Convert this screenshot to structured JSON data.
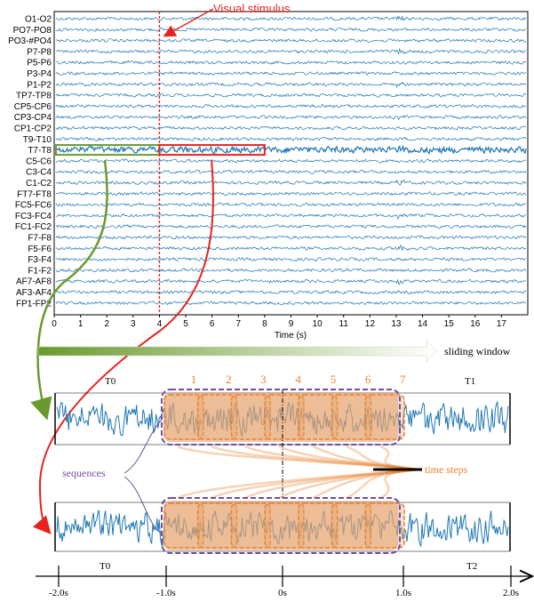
{
  "eeg": {
    "channels": [
      "O1-O2",
      "PO7-PO8",
      "PO3-#PO4",
      "P7-P8",
      "P5-P6",
      "P3-P4",
      "P1-P2",
      "TP7-TP8",
      "CP5-CP6",
      "CP3-CP4",
      "CP1-CP2",
      "T9-T10",
      "T7-T8",
      "C5-C6",
      "C3-C4",
      "C1-C2",
      "FT7-FT8",
      "FC5-FC6",
      "FC3-FC4",
      "FC1-FC2",
      "F7-F8",
      "F5-F6",
      "F3-F4",
      "F1-F2",
      "AF7-AF8",
      "AF3-AF4",
      "FP1-FP2"
    ],
    "x_ticks": [
      "0",
      "1",
      "2",
      "3",
      "4",
      "5",
      "6",
      "7",
      "8",
      "9",
      "10",
      "11",
      "12",
      "13",
      "14",
      "15",
      "16",
      "17"
    ],
    "x_label": "Time (s)",
    "stimulus_label": "Visual stimulus",
    "stimulus_time": 4,
    "highlight_channel": "T7-T8",
    "highlight_range": [
      0,
      8
    ],
    "x_max": 18
  },
  "sliding_window_label": "sliding window",
  "window1": {
    "left_label": "T0",
    "right_label": "T1",
    "step_numbers": [
      "1",
      "2",
      "3",
      "4",
      "5",
      "6",
      "7"
    ]
  },
  "window2": {
    "step_count": 7
  },
  "sequences_label": "sequences",
  "time_steps_label": "time steps",
  "bottom_axis": {
    "left_label": "T0",
    "right_label": "T2",
    "ticks": [
      "-2.0s",
      "-1.0s",
      "0s",
      "1.0s",
      "2.0s"
    ]
  },
  "colors": {
    "signal": "#1f77b4",
    "stimulus": "#e8231f",
    "highlight": "#e8231f",
    "green_arrow": "#6a9a2e",
    "orange": "#e8822d",
    "purple": "#6f4fa0",
    "step_fill": "#e0a070"
  }
}
